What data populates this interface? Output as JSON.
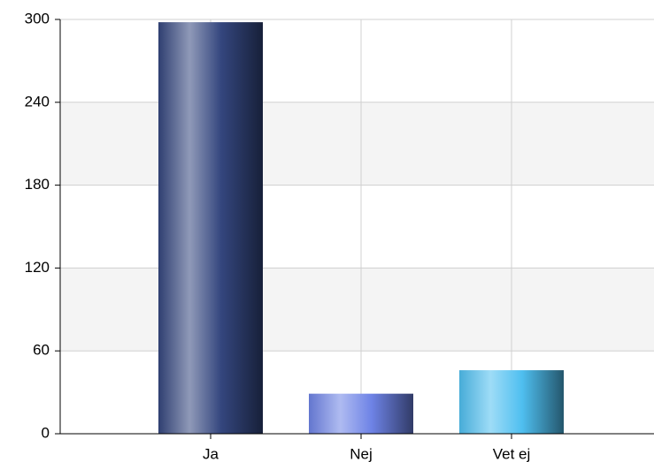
{
  "chart_data": {
    "type": "bar",
    "categories": [
      "Ja",
      "Nej",
      "Vet ej"
    ],
    "values": [
      298,
      29,
      46
    ],
    "colors": [
      "#34467e",
      "#6e83e6",
      "#4fbff0"
    ],
    "ylim": [
      0,
      300
    ],
    "yticks": [
      0,
      60,
      120,
      180,
      240,
      300
    ],
    "grid": true
  }
}
